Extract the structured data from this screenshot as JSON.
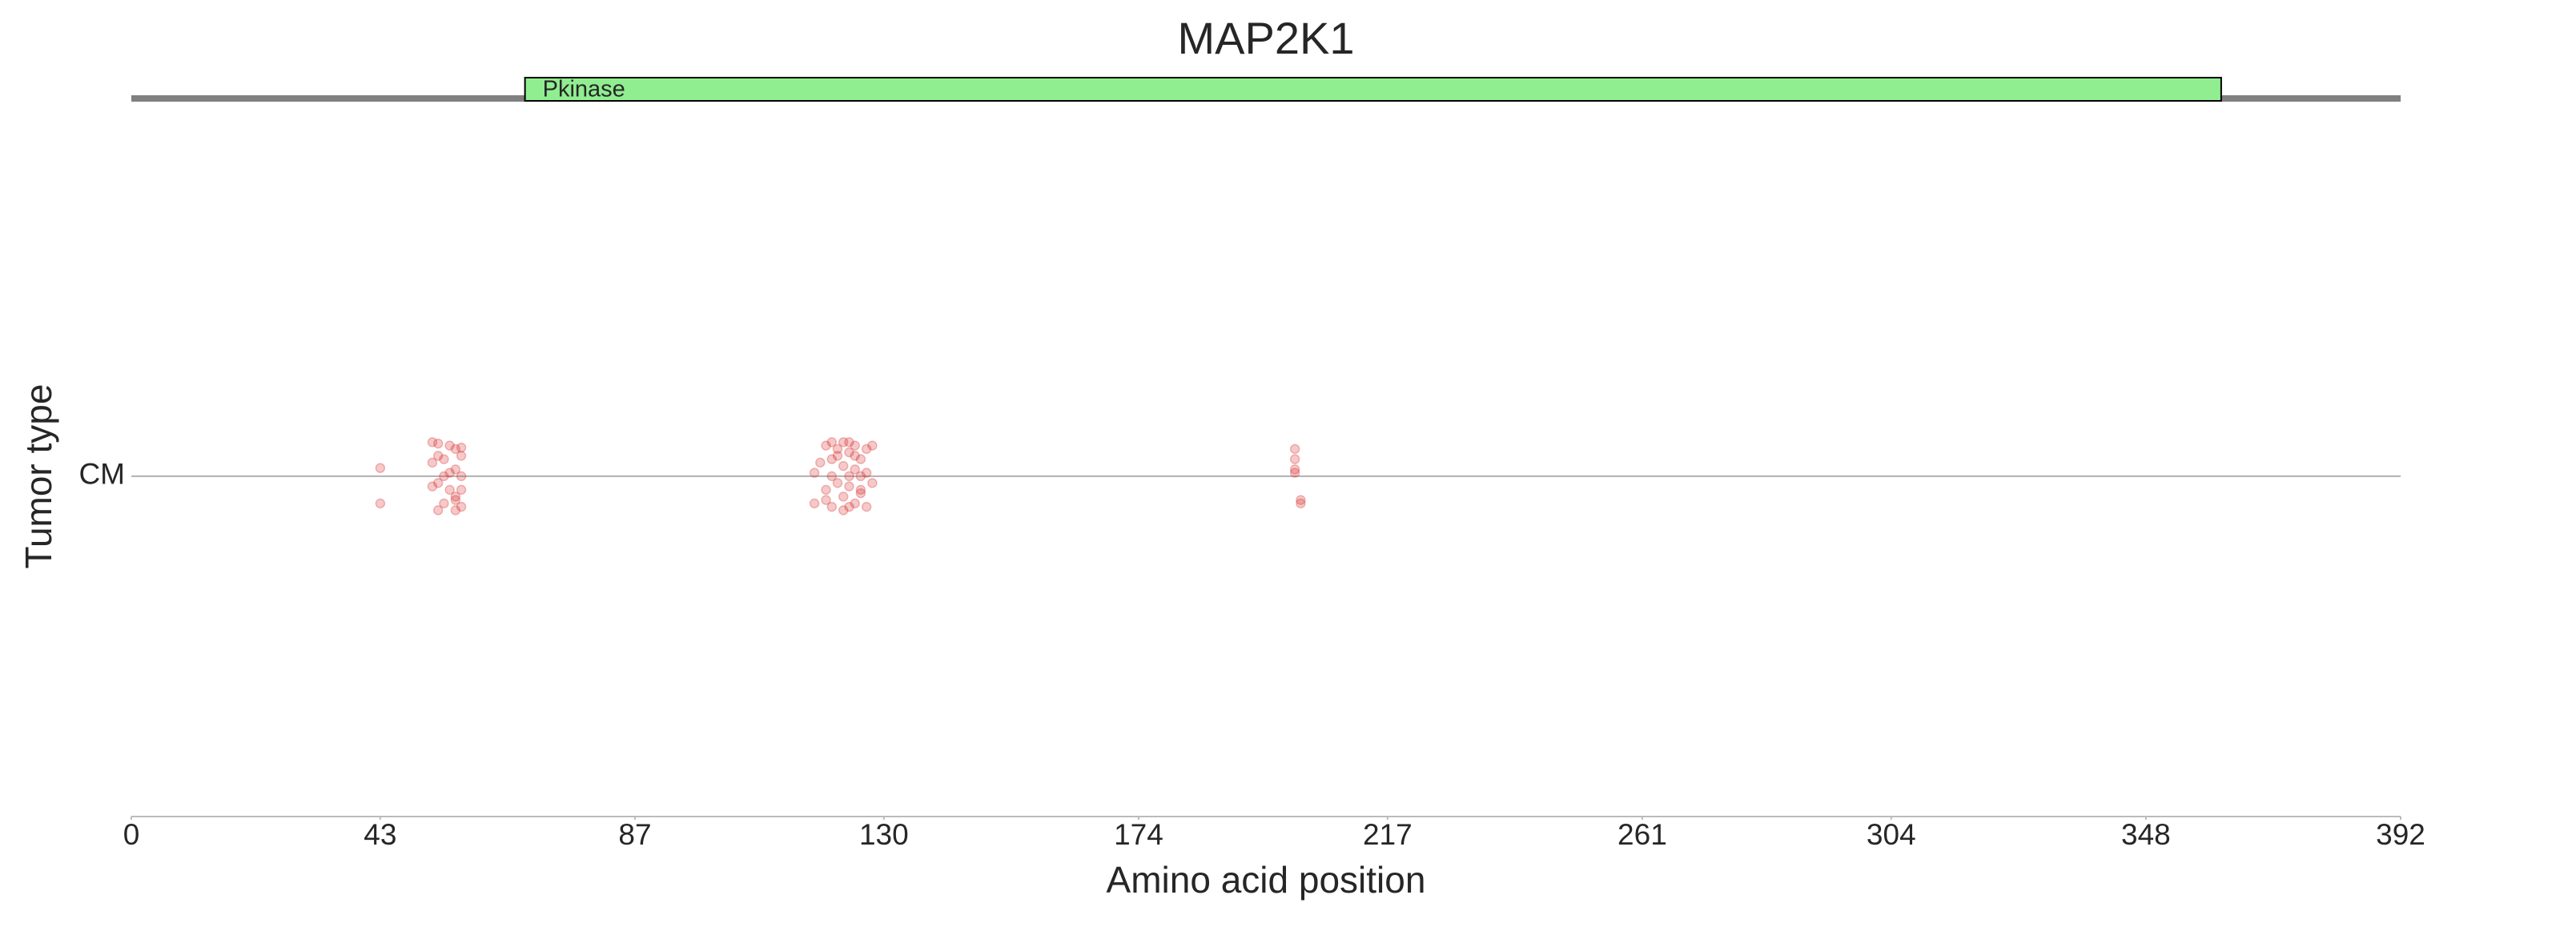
{
  "chart_data": {
    "type": "scatter",
    "title": "MAP2K1",
    "xlabel": "Amino acid position",
    "ylabel": "Tumor type",
    "xlim": [
      0,
      392
    ],
    "xticks": [
      0,
      43,
      87,
      130,
      174,
      217,
      261,
      304,
      348,
      392
    ],
    "ylim": [
      -0.5,
      0.555
    ],
    "yticks": [
      {
        "value": 0,
        "label": "CM"
      }
    ],
    "grid": true,
    "domains": [
      {
        "name": "Pkinase",
        "start": 68,
        "end": 361,
        "color": "#90ee90"
      }
    ],
    "series": [
      {
        "color": "#d62728",
        "x": [
          43,
          43,
          52,
          52,
          53,
          53,
          53,
          54,
          54,
          55,
          55,
          56,
          56,
          56,
          57,
          57,
          57,
          57,
          53,
          54,
          55,
          56,
          52,
          57,
          56,
          118,
          118,
          119,
          120,
          120,
          121,
          121,
          121,
          122,
          122,
          122,
          123,
          123,
          123,
          124,
          124,
          124,
          124,
          125,
          125,
          125,
          126,
          126,
          126,
          127,
          127,
          127,
          128,
          128,
          121,
          123,
          125,
          120,
          124,
          126,
          201,
          201,
          201,
          202,
          202,
          201
        ],
        "y": [
          0.012,
          -0.04,
          0.05,
          0.02,
          0.048,
          -0.01,
          0.03,
          -0.04,
          0.0,
          0.045,
          -0.02,
          0.01,
          -0.03,
          0.04,
          0.042,
          0.0,
          -0.045,
          -0.02,
          -0.05,
          0.025,
          0.005,
          -0.035,
          -0.015,
          0.03,
          -0.05,
          0.005,
          -0.04,
          0.02,
          0.045,
          -0.02,
          0.05,
          0.0,
          -0.045,
          0.03,
          -0.01,
          0.04,
          0.05,
          -0.03,
          0.015,
          0.0,
          0.035,
          -0.045,
          -0.015,
          0.045,
          0.01,
          -0.04,
          0.025,
          0.0,
          -0.02,
          0.04,
          -0.045,
          0.005,
          0.045,
          -0.01,
          0.025,
          -0.05,
          0.03,
          -0.035,
          0.05,
          -0.025,
          0.04,
          0.025,
          0.01,
          -0.035,
          -0.04,
          0.005
        ]
      }
    ]
  }
}
